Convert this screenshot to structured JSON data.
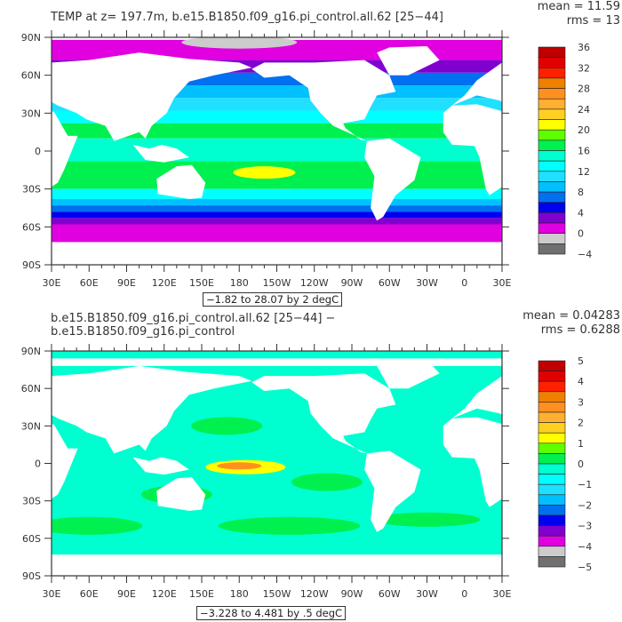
{
  "panels": [
    {
      "title": "TEMP at z= 197.7m, b.e15.B1850.f09_g16.pi_control.all.62 [25−44]",
      "mean": "mean = 11.59",
      "rms": "rms = 13",
      "range_label": "−1.82 to 28.07 by 2 degC",
      "colorbar_labels": [
        "36",
        "32",
        "28",
        "24",
        "20",
        "16",
        "12",
        "8",
        "4",
        "0",
        "−4"
      ]
    },
    {
      "title": "b.e15.B1850.f09_g16.pi_control.all.62 [25−44] − b.e15.B1850.f09_g16.pi_control",
      "mean": "mean = 0.04283",
      "rms": "rms = 0.6288",
      "range_label": "−3.228 to 4.481 by .5 degC",
      "colorbar_labels": [
        "5",
        "4",
        "3",
        "2",
        "1",
        "0",
        "−1",
        "−2",
        "−3",
        "−4",
        "−5"
      ]
    }
  ],
  "lon_labels": [
    "30E",
    "60E",
    "90E",
    "120E",
    "150E",
    "180",
    "150W",
    "120W",
    "90W",
    "60W",
    "30W",
    "0",
    "30E"
  ],
  "lat_labels": [
    "90N",
    "60N",
    "30N",
    "0",
    "30S",
    "60S",
    "90S"
  ],
  "colorbar_colors": [
    "#c00000",
    "#e00000",
    "#ff2000",
    "#f08000",
    "#ff9020",
    "#ffb030",
    "#ffd020",
    "#ffff00",
    "#60ff00",
    "#00f050",
    "#00ffd0",
    "#00ffff",
    "#20e0ff",
    "#00c0ff",
    "#0070f0",
    "#0000f0",
    "#8000d0",
    "#e000e0",
    "#cccccc",
    "#707070"
  ]
}
